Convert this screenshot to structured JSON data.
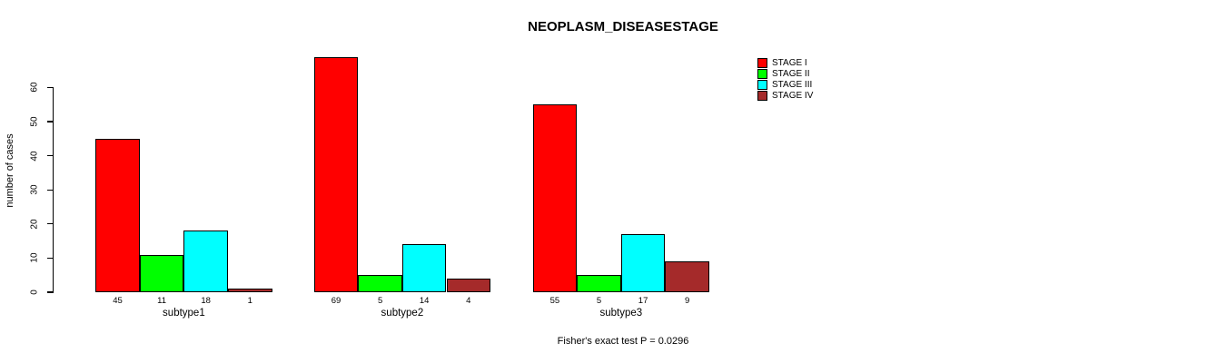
{
  "title": "NEOPLASM_DISEASESTAGE",
  "footer": "Fisher's exact test P = 0.0296",
  "colors": {
    "background": "#ffffff",
    "axis": "#000000",
    "stage_i": "#ff0000",
    "stage_ii": "#00ff00",
    "stage_iii": "#00ffff",
    "stage_iv": "#a52a2a"
  },
  "chart_data": {
    "type": "bar",
    "title": "NEOPLASM_DISEASESTAGE",
    "xlabel": "",
    "ylabel": "number of cases",
    "categories": [
      "subtype1",
      "subtype2",
      "subtype3"
    ],
    "series": [
      {
        "name": "STAGE I",
        "color": "#ff0000",
        "values": [
          45,
          69,
          55
        ]
      },
      {
        "name": "STAGE II",
        "color": "#00ff00",
        "values": [
          11,
          5,
          5
        ]
      },
      {
        "name": "STAGE III",
        "color": "#00ffff",
        "values": [
          18,
          14,
          17
        ]
      },
      {
        "name": "STAGE IV",
        "color": "#a52a2a",
        "values": [
          1,
          4,
          9
        ]
      }
    ],
    "bar_value_labels": [
      [
        "45",
        "11",
        "18",
        "1"
      ],
      [
        "69",
        "5",
        "14",
        "4"
      ],
      [
        "55",
        "5",
        "17",
        "9"
      ]
    ],
    "yticks": [
      0,
      10,
      20,
      30,
      40,
      50,
      60
    ],
    "ylim": [
      0,
      60
    ],
    "grid": false,
    "legend_position": "top-right",
    "annotation": "Fisher's exact test P = 0.0296"
  }
}
